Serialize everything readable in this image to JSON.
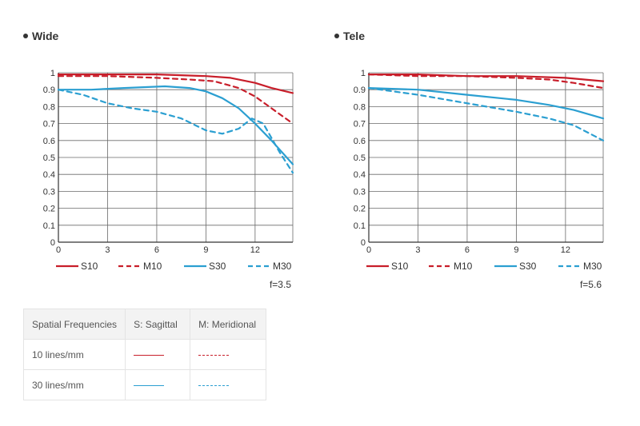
{
  "colors": {
    "s10": "#c81e2a",
    "m10": "#c81e2a",
    "s30": "#2b9fd1",
    "m30": "#2b9fd1",
    "grid": "#6a6a6a",
    "axis": "#333333"
  },
  "chart_data": [
    {
      "type": "line",
      "title": "Wide",
      "footnote": "f=3.5",
      "xlim": [
        0,
        14.3
      ],
      "ylim": [
        0,
        1
      ],
      "xticks": [
        0,
        3,
        6,
        9,
        12
      ],
      "yticks": [
        0,
        0.1,
        0.2,
        0.3,
        0.4,
        0.5,
        0.6,
        0.7,
        0.8,
        0.9,
        1
      ],
      "ytick_labels": [
        "0",
        "0.1",
        "0.2",
        "0.3",
        "0.4",
        "0.5",
        "0.6",
        "0.7",
        "0.8",
        "0.9",
        "1"
      ],
      "grid": true,
      "legend": [
        "S10",
        "M10",
        "S30",
        "M30"
      ],
      "series": [
        {
          "name": "S10",
          "style": "solid",
          "x": [
            0,
            3,
            6,
            9,
            10.5,
            12,
            13,
            14.3
          ],
          "y": [
            0.99,
            0.99,
            0.99,
            0.98,
            0.97,
            0.94,
            0.91,
            0.88
          ]
        },
        {
          "name": "M10",
          "style": "dashed",
          "x": [
            0,
            3,
            6,
            8,
            9.5,
            11,
            12,
            13,
            14.3
          ],
          "y": [
            0.98,
            0.98,
            0.97,
            0.96,
            0.95,
            0.91,
            0.86,
            0.79,
            0.7
          ]
        },
        {
          "name": "S30",
          "style": "solid",
          "x": [
            0,
            2,
            4,
            6.5,
            8,
            9,
            10,
            11,
            12,
            13,
            14.3
          ],
          "y": [
            0.9,
            0.9,
            0.91,
            0.92,
            0.91,
            0.89,
            0.85,
            0.79,
            0.7,
            0.6,
            0.46
          ]
        },
        {
          "name": "M30",
          "style": "dashed",
          "x": [
            0,
            1.5,
            3,
            4.5,
            6,
            7.5,
            9,
            10,
            11,
            11.8,
            12.5,
            13.5,
            14.3
          ],
          "y": [
            0.9,
            0.87,
            0.82,
            0.79,
            0.77,
            0.73,
            0.66,
            0.64,
            0.67,
            0.73,
            0.7,
            0.53,
            0.41
          ]
        }
      ]
    },
    {
      "type": "line",
      "title": "Tele",
      "footnote": "f=5.6",
      "xlim": [
        0,
        14.3
      ],
      "ylim": [
        0,
        1
      ],
      "xticks": [
        0,
        3,
        6,
        9,
        12
      ],
      "yticks": [
        0,
        0.1,
        0.2,
        0.3,
        0.4,
        0.5,
        0.6,
        0.7,
        0.8,
        0.9,
        1
      ],
      "ytick_labels": [
        "0",
        "0.1",
        "0.2",
        "0.3",
        "0.4",
        "0.5",
        "0.6",
        "0.7",
        "0.8",
        "0.9",
        "1"
      ],
      "grid": true,
      "legend": [
        "S10",
        "M10",
        "S30",
        "M30"
      ],
      "series": [
        {
          "name": "S10",
          "style": "solid",
          "x": [
            0,
            3,
            6,
            9,
            12,
            14.3
          ],
          "y": [
            0.99,
            0.99,
            0.98,
            0.98,
            0.97,
            0.95
          ]
        },
        {
          "name": "M10",
          "style": "dashed",
          "x": [
            0,
            3,
            6,
            9,
            11,
            12.5,
            14.3
          ],
          "y": [
            0.99,
            0.98,
            0.98,
            0.97,
            0.96,
            0.94,
            0.91
          ]
        },
        {
          "name": "S30",
          "style": "solid",
          "x": [
            0,
            3,
            6,
            9,
            11,
            12.5,
            14.3
          ],
          "y": [
            0.91,
            0.9,
            0.87,
            0.84,
            0.81,
            0.78,
            0.73
          ]
        },
        {
          "name": "M30",
          "style": "dashed",
          "x": [
            0,
            3,
            6,
            9,
            11,
            12.5,
            14.3
          ],
          "y": [
            0.91,
            0.87,
            0.82,
            0.77,
            0.73,
            0.69,
            0.6
          ]
        }
      ]
    }
  ],
  "table": {
    "headers": [
      "Spatial Frequencies",
      "S: Sagittal",
      "M: Meridional"
    ],
    "rows": [
      {
        "label": "10 lines/mm",
        "color": "#c81e2a"
      },
      {
        "label": "30 lines/mm",
        "color": "#2b9fd1"
      }
    ]
  }
}
